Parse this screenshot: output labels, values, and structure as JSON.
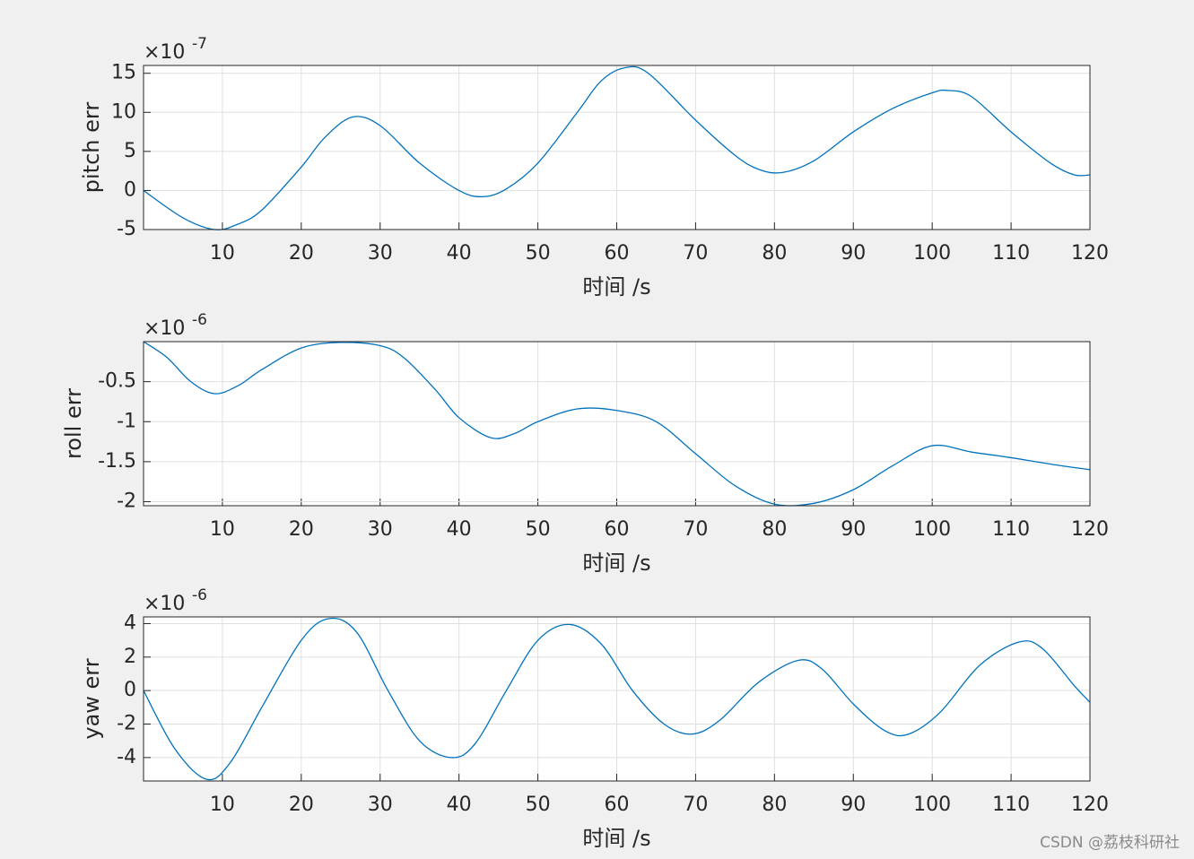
{
  "chart_data": [
    {
      "type": "line",
      "ylabel": "pitch err",
      "xlabel": "时间 /s",
      "scale_base": "×10",
      "scale_exponent": "-7",
      "xlim": [
        0,
        120
      ],
      "xticks": [
        10,
        20,
        30,
        40,
        50,
        60,
        70,
        80,
        90,
        100,
        110,
        120
      ],
      "ylim": [
        -5,
        16
      ],
      "yticks": [
        -5,
        0,
        5,
        10,
        15
      ],
      "grid": true,
      "series": [
        {
          "color": "#0072bd",
          "x": [
            0,
            5,
            9,
            12,
            15,
            20,
            23,
            26.5,
            30,
            35,
            40,
            43,
            46,
            50,
            55,
            58,
            61,
            64,
            70,
            75,
            78,
            81,
            85,
            90,
            95,
            100,
            102,
            105,
            110,
            115,
            118,
            120
          ],
          "values": [
            0,
            -3.5,
            -5,
            -4.3,
            -2.5,
            3,
            6.8,
            9.4,
            8.3,
            3.5,
            0,
            -0.8,
            0.2,
            3.5,
            10,
            14,
            15.7,
            15,
            9,
            4.5,
            2.7,
            2.3,
            3.8,
            7.5,
            10.5,
            12.5,
            12.8,
            12,
            7.5,
            3.5,
            2,
            2
          ]
        }
      ]
    },
    {
      "type": "line",
      "ylabel": "roll err",
      "xlabel": "时间 /s",
      "scale_base": "×10",
      "scale_exponent": "-6",
      "xlim": [
        0,
        120
      ],
      "xticks": [
        10,
        20,
        30,
        40,
        50,
        60,
        70,
        80,
        90,
        100,
        110,
        120
      ],
      "ylim": [
        -2.05,
        0
      ],
      "yticks": [
        -2,
        -1.5,
        -1,
        -0.5
      ],
      "grid": true,
      "series": [
        {
          "color": "#0072bd",
          "x": [
            0,
            3,
            6,
            9,
            12,
            15,
            20,
            25,
            30,
            33,
            37,
            40,
            44,
            47,
            50,
            55,
            60,
            65,
            70,
            75,
            80,
            85,
            90,
            95,
            100,
            105,
            110,
            115,
            120
          ],
          "values": [
            0,
            -0.2,
            -0.5,
            -0.65,
            -0.55,
            -0.35,
            -0.08,
            -0.01,
            -0.05,
            -0.2,
            -0.6,
            -0.95,
            -1.2,
            -1.15,
            -1,
            -0.84,
            -0.86,
            -1,
            -1.4,
            -1.8,
            -2.03,
            -2.02,
            -1.85,
            -1.55,
            -1.3,
            -1.38,
            -1.45,
            -1.53,
            -1.6
          ]
        }
      ]
    },
    {
      "type": "line",
      "ylabel": "yaw err",
      "xlabel": "时间 /s",
      "scale_base": "×10",
      "scale_exponent": "-6",
      "xlim": [
        0,
        120
      ],
      "xticks": [
        10,
        20,
        30,
        40,
        50,
        60,
        70,
        80,
        90,
        100,
        110,
        120
      ],
      "ylim": [
        -5.4,
        4.4
      ],
      "yticks": [
        -4,
        -2,
        0,
        2,
        4
      ],
      "grid": true,
      "series": [
        {
          "color": "#0072bd",
          "x": [
            0,
            4,
            8,
            11,
            15,
            20,
            23.5,
            27,
            31,
            35,
            39,
            42,
            46,
            50,
            54,
            58,
            62,
            66,
            69.5,
            73,
            78,
            83,
            86,
            90,
            94,
            97,
            101,
            106,
            111,
            114,
            118,
            120
          ],
          "values": [
            0,
            -3.5,
            -5.3,
            -4.3,
            -1,
            3,
            4.3,
            3.5,
            0,
            -3,
            -4,
            -3.2,
            0,
            3,
            3.95,
            2.8,
            0,
            -2,
            -2.6,
            -1.8,
            0.5,
            1.8,
            1.3,
            -0.8,
            -2.4,
            -2.6,
            -1.3,
            1.5,
            2.9,
            2.5,
            0.3,
            -0.7
          ]
        }
      ]
    }
  ],
  "watermark": "CSDN @荔枝科研社"
}
